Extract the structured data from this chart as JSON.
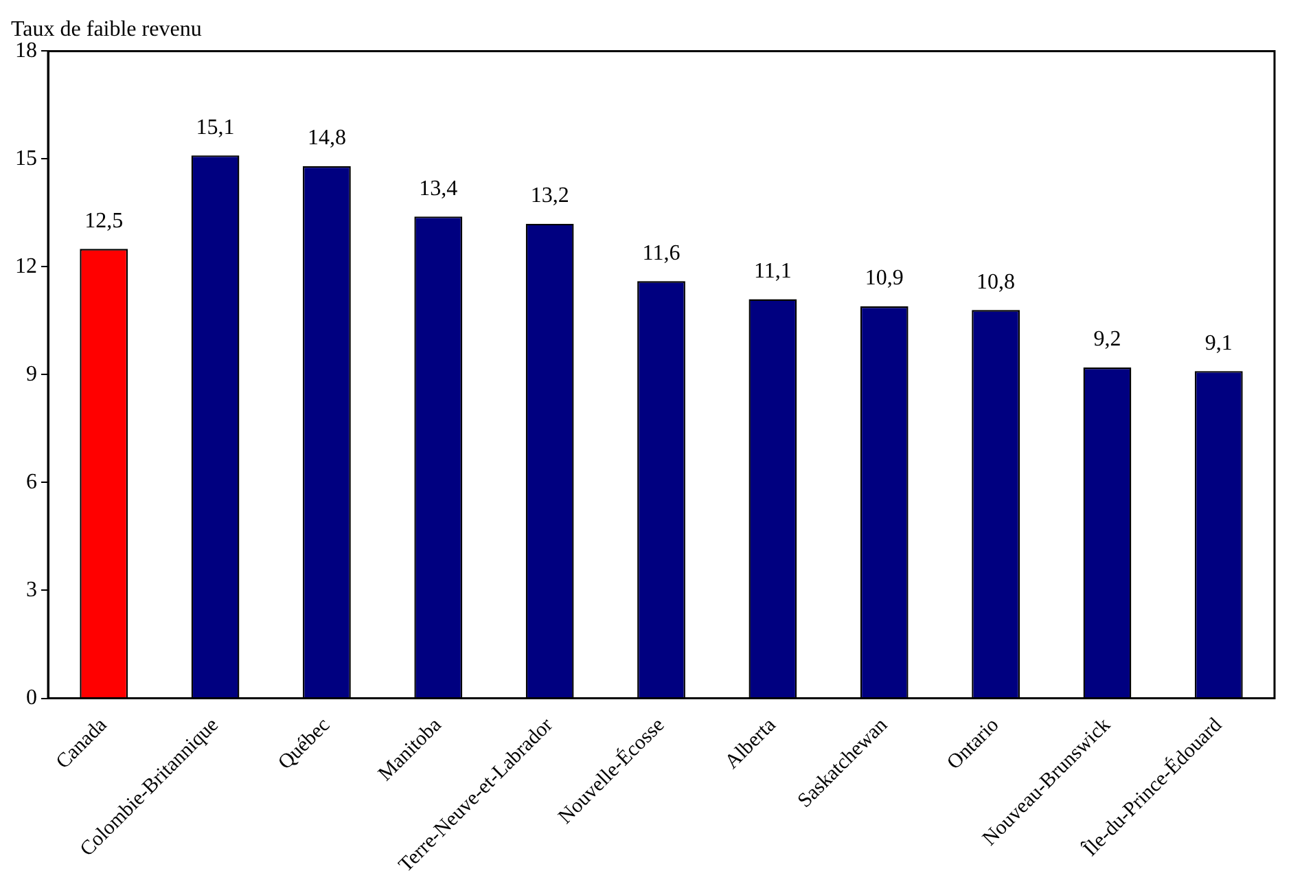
{
  "chart_data": {
    "type": "bar",
    "ylabel": "Taux de faible revenu",
    "categories": [
      "Canada",
      "Colombie-Britannique",
      "Québec",
      "Manitoba",
      "Terre-Neuve-et-Labrador",
      "Nouvelle-Écosse",
      "Alberta",
      "Saskatchewan",
      "Ontario",
      "Nouveau-Brunswick",
      "Île-du-Prince-Édouard"
    ],
    "values": [
      12.5,
      15.1,
      14.8,
      13.4,
      13.2,
      11.6,
      11.1,
      10.9,
      10.8,
      9.2,
      9.1
    ],
    "colors": [
      "#ff0000",
      "#000080",
      "#000080",
      "#000080",
      "#000080",
      "#000080",
      "#000080",
      "#000080",
      "#000080",
      "#000080",
      "#000080"
    ],
    "ylim": [
      0,
      18
    ],
    "yticks": [
      0,
      3,
      6,
      9,
      12,
      15,
      18
    ],
    "value_labels": [
      "12,5",
      "15,1",
      "14,8",
      "13,4",
      "13,2",
      "11,6",
      "11,1",
      "10,9",
      "10,8",
      "9,2",
      "9,1"
    ],
    "grid": false,
    "legend": false
  }
}
